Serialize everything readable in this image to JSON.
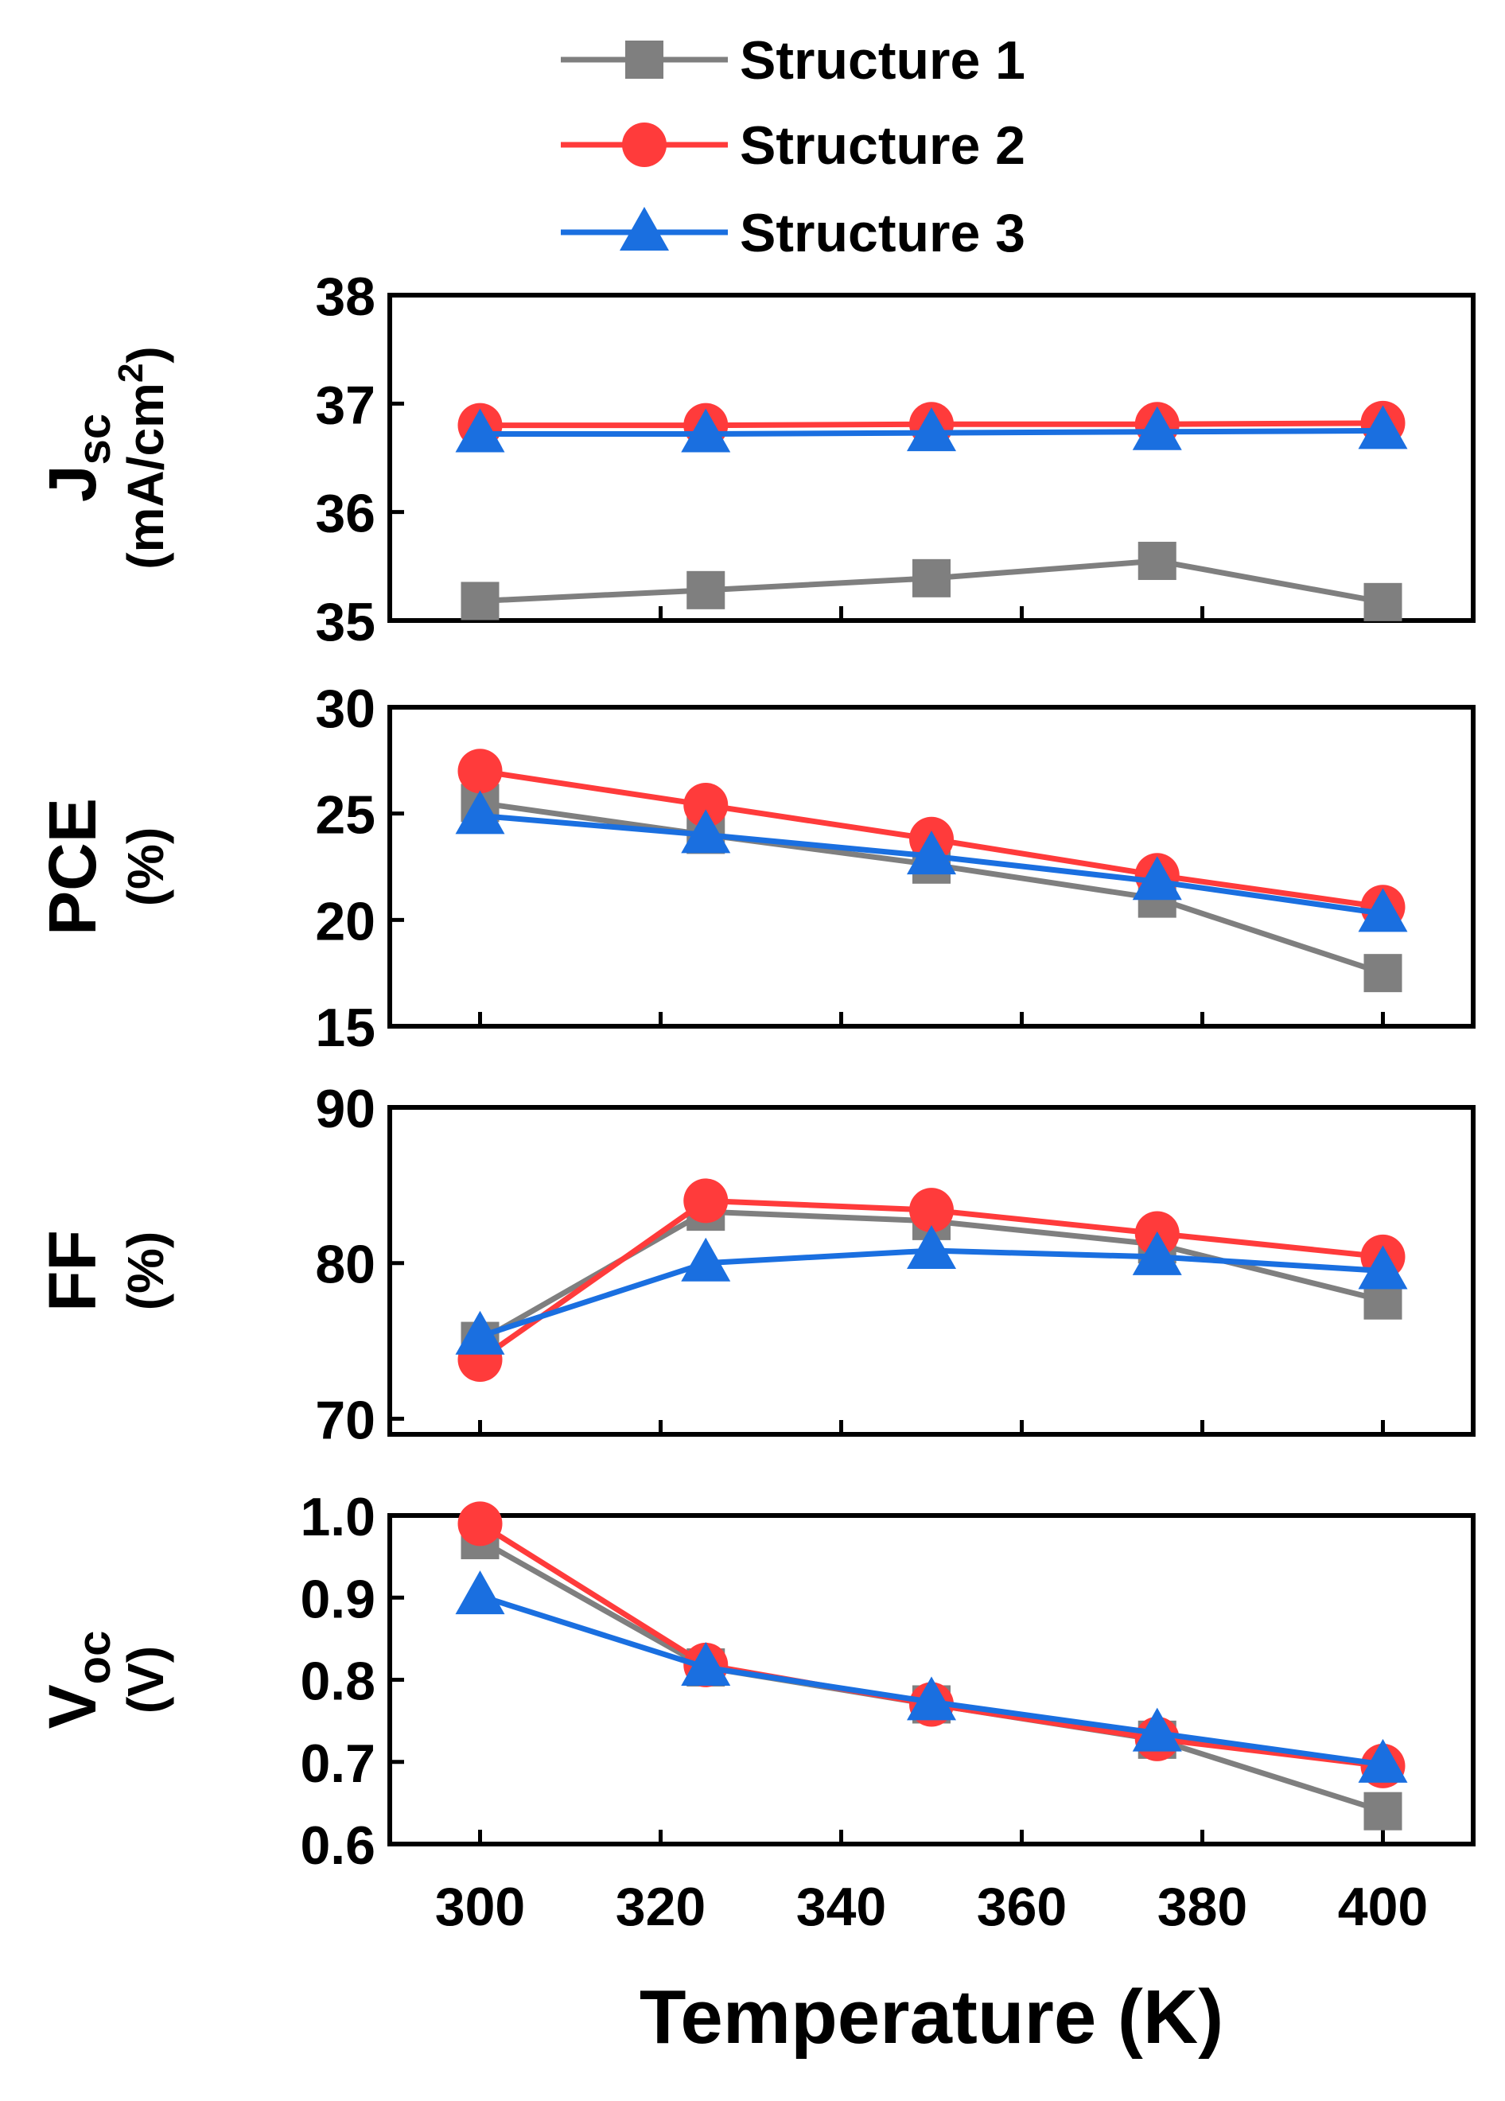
{
  "chart_data": {
    "type": "line",
    "xlabel": "Temperature (K)",
    "x": [
      300,
      325,
      350,
      375,
      400
    ],
    "xlim": [
      290,
      410
    ],
    "xticks": [
      300,
      320,
      340,
      360,
      380,
      400
    ],
    "legend": {
      "placement": "top-center",
      "entries": [
        {
          "name": "Structure 1",
          "color": "#7f7f7f",
          "marker": "square"
        },
        {
          "name": "Structure 2",
          "color": "#ff3b3b",
          "marker": "circle"
        },
        {
          "name": "Structure 3",
          "color": "#1a6fe0",
          "marker": "triangle"
        }
      ]
    },
    "panels": [
      {
        "id": "jsc",
        "ylabel_main": "J",
        "ylabel_main_sub": "sc",
        "ylabel_units": "(mA/cm",
        "ylabel_units_sup": "2",
        "ylabel_units_end": ")",
        "ylim": [
          35,
          38
        ],
        "yticks": [
          "35",
          "36",
          "37",
          "38"
        ],
        "ytick_values": [
          35,
          36,
          37,
          38
        ],
        "series": [
          {
            "name": "Structure 1",
            "values": [
              35.18,
              35.28,
              35.39,
              35.55,
              35.17
            ]
          },
          {
            "name": "Structure 2",
            "values": [
              36.8,
              36.8,
              36.81,
              36.81,
              36.82
            ]
          },
          {
            "name": "Structure 3",
            "values": [
              36.72,
              36.72,
              36.73,
              36.74,
              36.75
            ]
          }
        ]
      },
      {
        "id": "pce",
        "ylabel_main": "PCE",
        "ylabel_units": "(%)",
        "ylim": [
          15,
          30
        ],
        "yticks": [
          "15",
          "20",
          "25",
          "30"
        ],
        "ytick_values": [
          15,
          20,
          25,
          30
        ],
        "series": [
          {
            "name": "Structure 1",
            "values": [
              25.5,
              24.0,
              22.6,
              21.0,
              17.5
            ]
          },
          {
            "name": "Structure 2",
            "values": [
              27.0,
              25.4,
              23.8,
              22.1,
              20.6
            ]
          },
          {
            "name": "Structure 3",
            "values": [
              24.9,
              24.0,
              23.0,
              21.8,
              20.3
            ]
          }
        ]
      },
      {
        "id": "ff",
        "ylabel_main": "FF",
        "ylabel_units": "(%)",
        "ylim": [
          69,
          90
        ],
        "yticks": [
          "70",
          "80",
          "90"
        ],
        "ytick_values": [
          70,
          80,
          90
        ],
        "series": [
          {
            "name": "Structure 1",
            "values": [
              75.0,
              83.3,
              82.7,
              81.2,
              77.6
            ]
          },
          {
            "name": "Structure 2",
            "values": [
              73.8,
              84.0,
              83.4,
              81.9,
              80.4
            ]
          },
          {
            "name": "Structure 3",
            "values": [
              75.3,
              80.0,
              80.8,
              80.4,
              79.5
            ]
          }
        ]
      },
      {
        "id": "voc",
        "ylabel_main": "V",
        "ylabel_main_sub": "oc",
        "ylabel_units": "(V)",
        "ylim": [
          0.6,
          1.0
        ],
        "yticks": [
          "0.6",
          "0.7",
          "0.8",
          "0.9",
          "1.0"
        ],
        "ytick_values": [
          0.6,
          0.7,
          0.8,
          0.9,
          1.0
        ],
        "series": [
          {
            "name": "Structure 1",
            "values": [
              0.97,
              0.815,
              0.77,
              0.727,
              0.64
            ]
          },
          {
            "name": "Structure 2",
            "values": [
              0.99,
              0.818,
              0.77,
              0.728,
              0.695
            ]
          },
          {
            "name": "Structure 3",
            "values": [
              0.902,
              0.815,
              0.773,
              0.735,
              0.697
            ]
          }
        ]
      }
    ]
  }
}
